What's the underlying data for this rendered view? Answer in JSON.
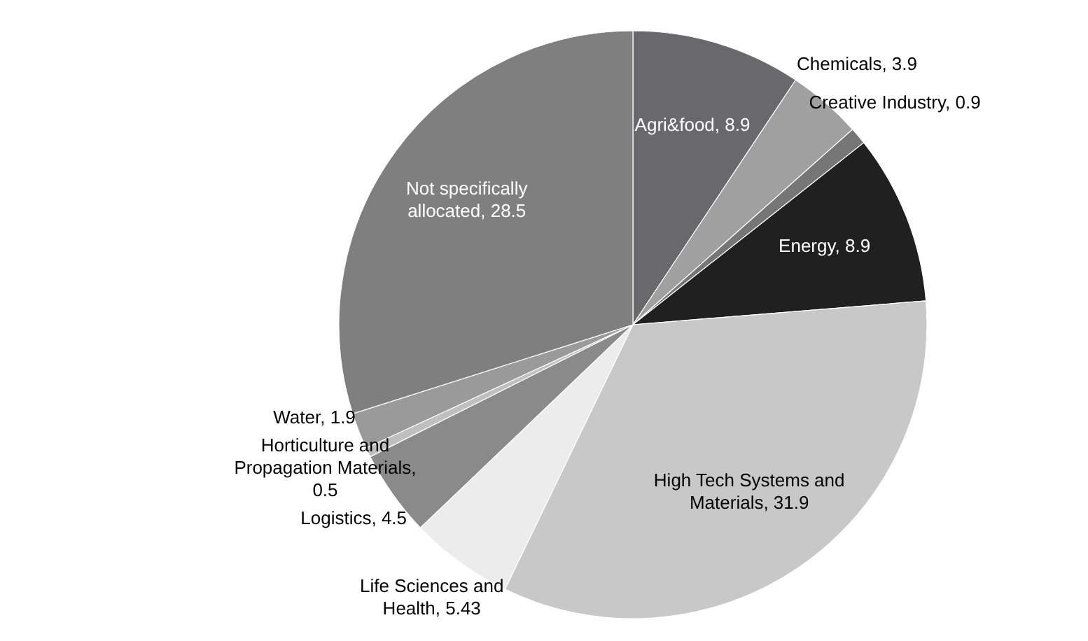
{
  "chart_data": {
    "type": "pie",
    "categories": [
      "Agri&food, 8.9",
      "Chemicals, 3.9",
      "Creative Industry, 0.9",
      "Energy, 8.9",
      "High Tech Systems and Materials, 31.9",
      "Life Sciences and Health, 5.43",
      "Logistics, 4.5",
      "Horticulture and Propagation Materials, 0.5",
      "Water, 1.9",
      "Not specifically allocated, 28.5"
    ],
    "values": [
      8.9,
      3.9,
      0.9,
      8.9,
      31.9,
      5.43,
      4.5,
      0.5,
      1.9,
      28.5
    ],
    "colors": [
      "#69696b",
      "#a0a0a0",
      "#767676",
      "#202020",
      "#c8c8c8",
      "#ececec",
      "#8a8a8a",
      "#bfbfbf",
      "#9a9a9a",
      "#7f7f7f"
    ]
  }
}
